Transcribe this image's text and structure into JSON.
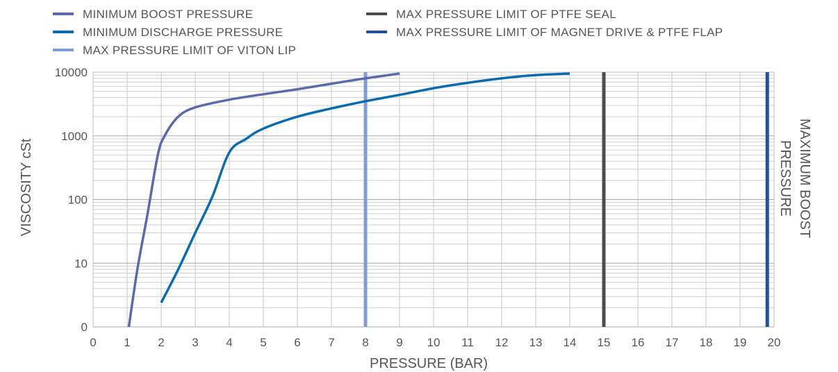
{
  "chart_data": {
    "type": "line",
    "xlabel": "PRESSURE (BAR)",
    "ylabel": "VISCOSITY cSt",
    "right_label": [
      "MAXIMUM BOOST",
      "PRESSURE"
    ],
    "x_ticks": [
      "0",
      "1",
      "2",
      "3",
      "4",
      "5",
      "6",
      "7",
      "8",
      "9",
      "10",
      "11",
      "12",
      "13",
      "14",
      "15",
      "16",
      "17",
      "18",
      "19",
      "20"
    ],
    "y_ticks": [
      "0",
      "10",
      "100",
      "1000",
      "10000"
    ],
    "xlim": [
      0,
      20
    ],
    "y_scale": "log",
    "grid": true,
    "legend_position": "top",
    "series": [
      {
        "name": "MINIMUM BOOST PRESSURE",
        "color": "#5b6aae",
        "points": [
          [
            1.05,
            1
          ],
          [
            1.3,
            8
          ],
          [
            1.6,
            60
          ],
          [
            1.9,
            500
          ],
          [
            2.1,
            1000
          ],
          [
            2.5,
            2000
          ],
          [
            3.0,
            2800
          ],
          [
            4.0,
            3700
          ],
          [
            5.0,
            4500
          ],
          [
            6.0,
            5400
          ],
          [
            7.0,
            6600
          ],
          [
            8.0,
            8000
          ],
          [
            9.0,
            9500
          ]
        ]
      },
      {
        "name": "MINIMUM DISCHARGE PRESSURE",
        "color": "#0a6cb0",
        "points": [
          [
            2.0,
            2.4
          ],
          [
            2.5,
            8
          ],
          [
            3.0,
            30
          ],
          [
            3.5,
            110
          ],
          [
            4.0,
            550
          ],
          [
            4.5,
            900
          ],
          [
            5.0,
            1300
          ],
          [
            6.0,
            2000
          ],
          [
            7.0,
            2700
          ],
          [
            8.0,
            3500
          ],
          [
            9.0,
            4400
          ],
          [
            10.0,
            5600
          ],
          [
            11.0,
            6800
          ],
          [
            12.0,
            8000
          ],
          [
            13.0,
            9000
          ],
          [
            14.0,
            9500
          ]
        ]
      },
      {
        "name": "MAX PRESSURE LIMIT OF VITON LIP",
        "color": "#7c9fd6",
        "vertical_at": 8
      },
      {
        "name": "MAX PRESSURE LIMIT OF PTFE SEAL",
        "color": "#4d4d4d",
        "vertical_at": 15
      },
      {
        "name": "MAX PRESSURE LIMIT OF MAGNET DRIVE & PTFE FLAP",
        "color": "#2050a0",
        "vertical_at": 19.8
      }
    ]
  }
}
